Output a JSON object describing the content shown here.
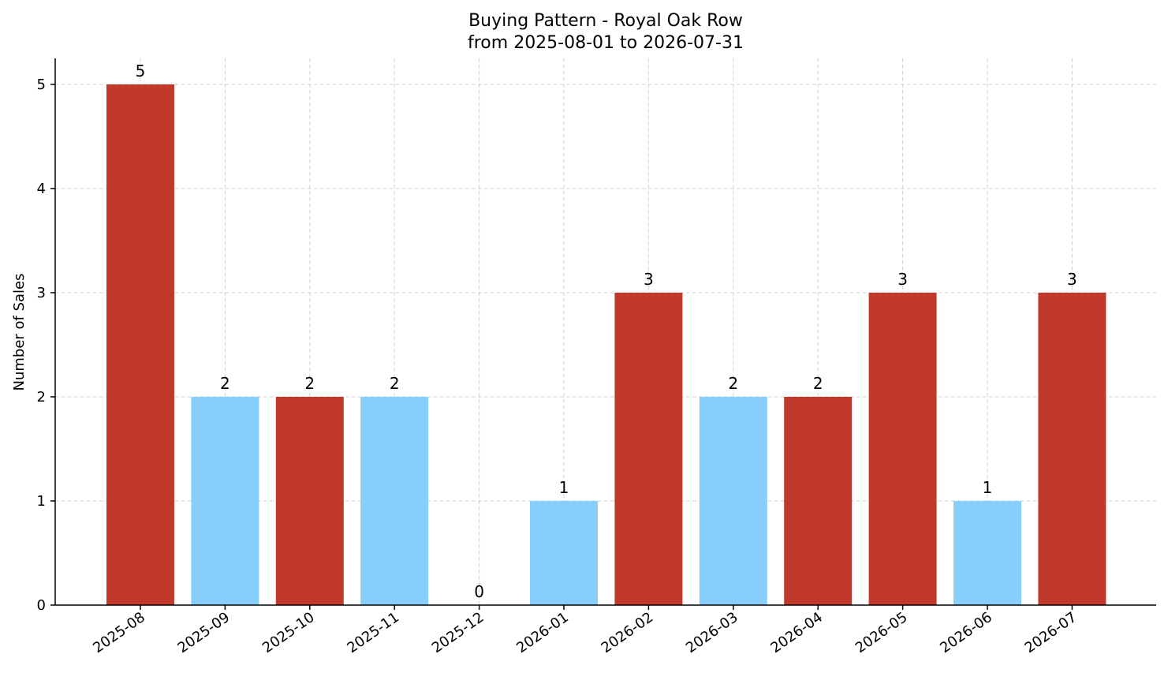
{
  "chart_data": {
    "type": "bar",
    "title": "Buying Pattern - Royal Oak Row",
    "subtitle": "from 2025-08-01 to 2026-07-31",
    "xlabel": "",
    "ylabel": "Number of Sales",
    "categories": [
      "2025-08",
      "2025-09",
      "2025-10",
      "2025-11",
      "2025-12",
      "2026-01",
      "2026-02",
      "2026-03",
      "2026-04",
      "2026-05",
      "2026-06",
      "2026-07"
    ],
    "values": [
      5,
      2,
      2,
      2,
      0,
      1,
      3,
      2,
      2,
      3,
      1,
      3
    ],
    "data_labels": [
      "5",
      "2",
      "2",
      "2",
      "0",
      "1",
      "3",
      "2",
      "2",
      "3",
      "1",
      "3"
    ],
    "bar_colors": [
      "#c0392b",
      "#87cefa",
      "#c0392b",
      "#87cefa",
      "#87cefa",
      "#87cefa",
      "#c0392b",
      "#87cefa",
      "#c0392b",
      "#c0392b",
      "#87cefa",
      "#c0392b"
    ],
    "ylim": [
      0,
      5.25
    ],
    "yticks": [
      0,
      1,
      2,
      3,
      4,
      5
    ],
    "ytick_labels": [
      "0",
      "1",
      "2",
      "3",
      "4",
      "5"
    ],
    "grid": true,
    "legend": "none",
    "x_tick_rotation_deg": 35
  }
}
